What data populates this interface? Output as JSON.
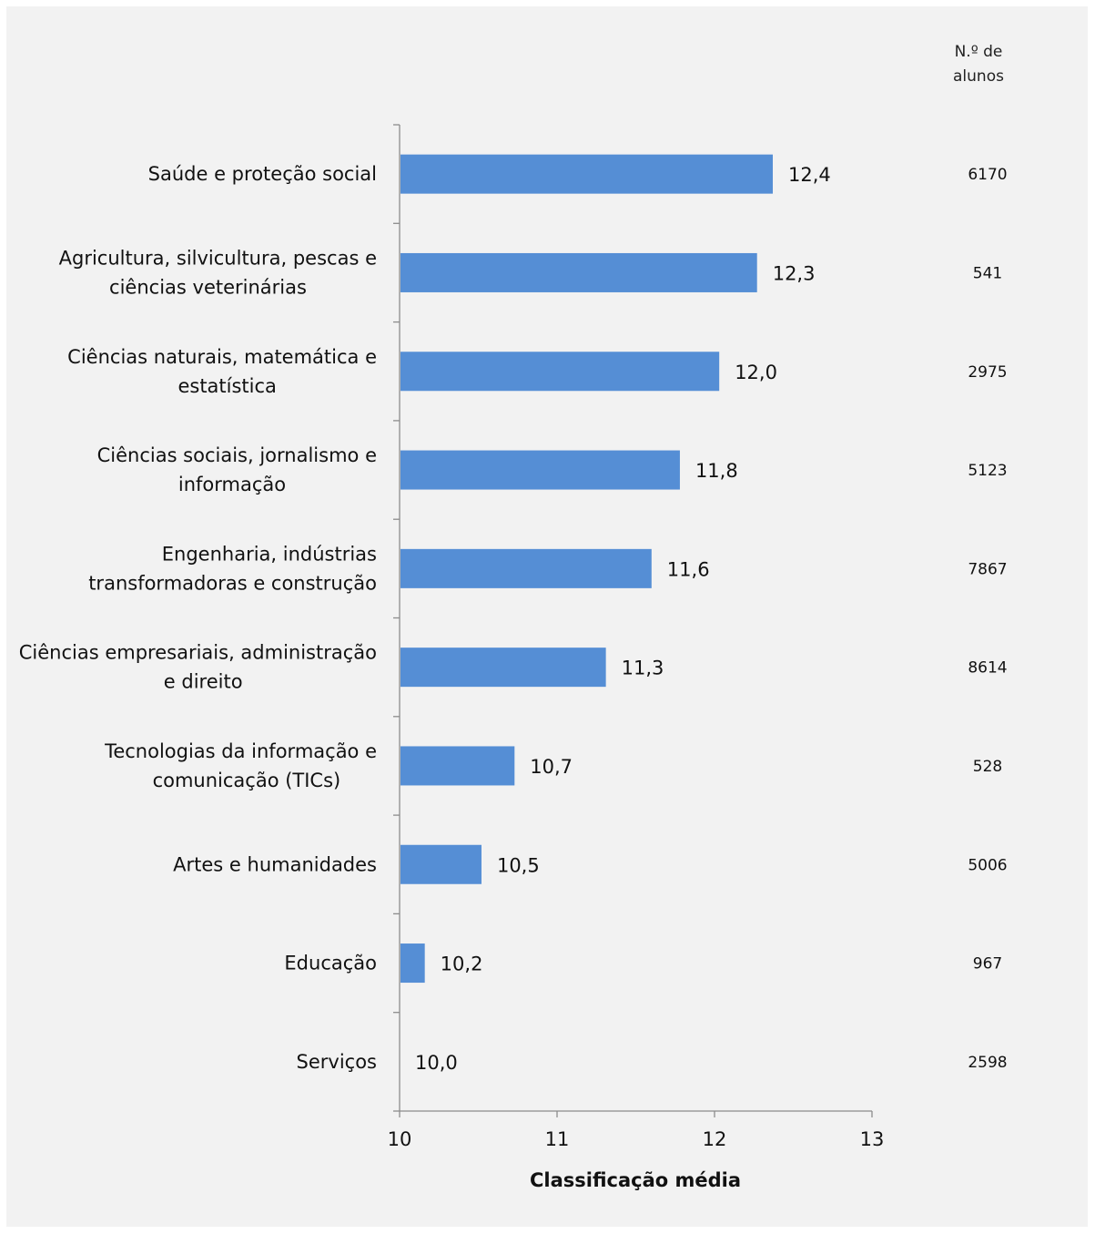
{
  "chart_data": {
    "type": "bar",
    "orientation": "horizontal",
    "categories": [
      "Saúde e proteção social",
      "Agricultura, silvicultura, pescas e ciências veterinárias",
      "Ciências naturais, matemática e estatística",
      "Ciências sociais, jornalismo e informação",
      "Engenharia, indústrias transformadoras e construção",
      "Ciências empresariais, administração e direito",
      "Tecnologias da informação e comunicação (TICs)",
      "Artes e humanidades",
      "Educação",
      "Serviços"
    ],
    "category_lines": [
      [
        "Saúde e proteção social"
      ],
      [
        "Agricultura, silvicultura, pescas e",
        "ciências veterinárias"
      ],
      [
        "Ciências naturais, matemática e",
        "estatística"
      ],
      [
        "Ciências sociais, jornalismo e",
        "informação"
      ],
      [
        "Engenharia, indústrias",
        "transformadoras e construção"
      ],
      [
        "Ciências empresariais, administração",
        "e direito"
      ],
      [
        "Tecnologias da informação e",
        "comunicação (TICs)"
      ],
      [
        "Artes e humanidades"
      ],
      [
        "Educação"
      ],
      [
        "Serviços"
      ]
    ],
    "values": [
      12.37,
      12.27,
      12.03,
      11.78,
      11.6,
      11.31,
      10.73,
      10.52,
      10.16,
      10.0
    ],
    "value_labels": [
      "12,4",
      "12,3",
      "12,0",
      "11,8",
      "11,6",
      "11,3",
      "10,7",
      "10,5",
      "10,2",
      "10,0"
    ],
    "students": [
      "6170",
      "541",
      "2975",
      "5123",
      "7867",
      "8614",
      "528",
      "5006",
      "967",
      "2598"
    ],
    "students_header": [
      "N.º de",
      "alunos"
    ],
    "xlabel": "Classificação média",
    "xlim": [
      10,
      13
    ],
    "xticks": [
      "10",
      "11",
      "12",
      "13"
    ],
    "bar_color": "#558ed5",
    "grid": false
  }
}
